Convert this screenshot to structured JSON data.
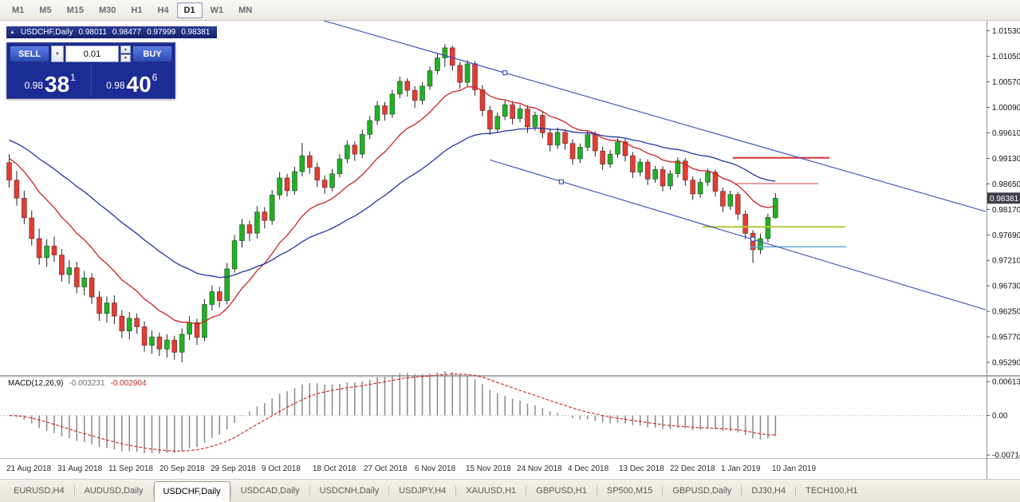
{
  "toolbar": {
    "timeframes": [
      "M1",
      "M5",
      "M15",
      "M30",
      "H1",
      "H4",
      "D1",
      "W1",
      "MN"
    ],
    "active": "D1"
  },
  "chart_header": {
    "icon": "▲",
    "title": "USDCHF,Daily",
    "open": "0.98011",
    "high": "0.98477",
    "low": "0.97999",
    "close": "0.98381"
  },
  "trade_panel": {
    "sell_label": "SELL",
    "buy_label": "BUY",
    "volume": "0.01",
    "sell_price": {
      "prefix": "0.98",
      "big": "38",
      "sup": "1"
    },
    "buy_price": {
      "prefix": "0.98",
      "big": "40",
      "sup": "6"
    }
  },
  "macd_header": {
    "label": "MACD(12,26,9)",
    "value1": "-0.003231",
    "value2": "-0.002904"
  },
  "tabs": {
    "items": [
      "EURUSD,H4",
      "AUDUSD,Daily",
      "USDCHF,Daily",
      "USDCAD,Daily",
      "USDCNH,Daily",
      "USDJPY,H4",
      "XAUUSD,H1",
      "GBPUSD,H1",
      "SP500,M15",
      "GBPUSD,Daily",
      "DJ30,H4",
      "TECH100,H1"
    ],
    "active": "USDCHF,Daily"
  },
  "chart_data": {
    "type": "candlestick",
    "symbol": "USDCHF",
    "timeframe": "Daily",
    "price_axis_ticks": [
      "1.01530",
      "1.01050",
      "1.00570",
      "1.00090",
      "0.99610",
      "0.99130",
      "0.98650",
      "0.98170",
      "0.97690",
      "0.97210",
      "0.96730",
      "0.96250",
      "0.95770",
      "0.95290"
    ],
    "current_price": "0.98381",
    "current_price_color": "#3f3f49",
    "price_range": {
      "top": 1.0172,
      "bottom": 0.9505
    },
    "x_labels": [
      "21 Aug 2018",
      "31 Aug 2018",
      "11 Sep 2018",
      "20 Sep 2018",
      "29 Sep 2018",
      "9 Oct 2018",
      "18 Oct 2018",
      "27 Oct 2018",
      "6 Nov 2018",
      "15 Nov 2018",
      "24 Nov 2018",
      "4 Dec 2018",
      "13 Dec 2018",
      "22 Dec 2018",
      "1 Jan 2019",
      "10 Jan 2019"
    ],
    "up_color": "#21b126",
    "down_color": "#e63c34",
    "candles": [
      [
        0.9905,
        0.9921,
        0.9858,
        0.9872
      ],
      [
        0.9872,
        0.9889,
        0.9824,
        0.9838
      ],
      [
        0.9838,
        0.9852,
        0.9789,
        0.9801
      ],
      [
        0.9801,
        0.9815,
        0.9749,
        0.9762
      ],
      [
        0.9762,
        0.9781,
        0.9713,
        0.9726
      ],
      [
        0.9726,
        0.9761,
        0.9709,
        0.9748
      ],
      [
        0.9748,
        0.9766,
        0.9718,
        0.9731
      ],
      [
        0.9731,
        0.9742,
        0.9681,
        0.9694
      ],
      [
        0.9694,
        0.9721,
        0.9677,
        0.9707
      ],
      [
        0.9707,
        0.9718,
        0.9659,
        0.9671
      ],
      [
        0.9671,
        0.9701,
        0.9655,
        0.9688
      ],
      [
        0.9688,
        0.9697,
        0.9639,
        0.9652
      ],
      [
        0.9652,
        0.9663,
        0.9607,
        0.9621
      ],
      [
        0.9621,
        0.9653,
        0.9604,
        0.9641
      ],
      [
        0.9641,
        0.9655,
        0.9601,
        0.9616
      ],
      [
        0.9616,
        0.9627,
        0.9575,
        0.9588
      ],
      [
        0.9588,
        0.9624,
        0.9572,
        0.9612
      ],
      [
        0.9612,
        0.9621,
        0.9583,
        0.9596
      ],
      [
        0.9596,
        0.9606,
        0.9549,
        0.9561
      ],
      [
        0.9561,
        0.9589,
        0.9545,
        0.9577
      ],
      [
        0.9577,
        0.9585,
        0.9541,
        0.9554
      ],
      [
        0.9554,
        0.9582,
        0.9538,
        0.9571
      ],
      [
        0.9571,
        0.9579,
        0.9534,
        0.9548
      ],
      [
        0.9548,
        0.9593,
        0.9529,
        0.9582
      ],
      [
        0.9582,
        0.9616,
        0.9571,
        0.9604
      ],
      [
        0.9604,
        0.9611,
        0.9562,
        0.9576
      ],
      [
        0.9576,
        0.9648,
        0.9569,
        0.9638
      ],
      [
        0.9638,
        0.9674,
        0.9627,
        0.9662
      ],
      [
        0.9662,
        0.9671,
        0.9632,
        0.9645
      ],
      [
        0.9645,
        0.9716,
        0.9638,
        0.9705
      ],
      [
        0.9705,
        0.9769,
        0.9698,
        0.9758
      ],
      [
        0.9758,
        0.9799,
        0.9745,
        0.9788
      ],
      [
        0.9788,
        0.9796,
        0.9757,
        0.9772
      ],
      [
        0.9772,
        0.9823,
        0.9762,
        0.9812
      ],
      [
        0.9812,
        0.9821,
        0.9781,
        0.9796
      ],
      [
        0.9796,
        0.9853,
        0.9788,
        0.9844
      ],
      [
        0.9844,
        0.9887,
        0.9836,
        0.9876
      ],
      [
        0.9876,
        0.9884,
        0.9841,
        0.9852
      ],
      [
        0.9852,
        0.9897,
        0.9845,
        0.9888
      ],
      [
        0.9888,
        0.9942,
        0.9879,
        0.9918
      ],
      [
        0.9918,
        0.9926,
        0.9884,
        0.9896
      ],
      [
        0.9896,
        0.9905,
        0.9859,
        0.9872
      ],
      [
        0.9872,
        0.9881,
        0.9846,
        0.9858
      ],
      [
        0.9858,
        0.9893,
        0.9851,
        0.9884
      ],
      [
        0.9884,
        0.9921,
        0.9877,
        0.9912
      ],
      [
        0.9912,
        0.9947,
        0.9904,
        0.9938
      ],
      [
        0.9938,
        0.9945,
        0.9908,
        0.9921
      ],
      [
        0.9921,
        0.9967,
        0.9914,
        0.9958
      ],
      [
        0.9958,
        0.9993,
        0.9949,
        0.9984
      ],
      [
        0.9984,
        1.0021,
        0.9976,
        1.0012
      ],
      [
        1.0012,
        1.0019,
        0.9984,
        0.9996
      ],
      [
        0.9996,
        1.0042,
        0.9989,
        1.0034
      ],
      [
        1.0034,
        1.0067,
        1.0026,
        1.0058
      ],
      [
        1.0058,
        1.0064,
        1.0029,
        1.0041
      ],
      [
        1.0041,
        1.0049,
        1.0008,
        1.0022
      ],
      [
        1.0022,
        1.0057,
        1.0014,
        1.0049
      ],
      [
        1.0049,
        1.0086,
        1.0042,
        1.0078
      ],
      [
        1.0078,
        1.0111,
        1.0071,
        1.0102
      ],
      [
        1.0102,
        1.0128,
        1.0085,
        1.0121
      ],
      [
        1.0121,
        1.0125,
        1.0078,
        1.0088
      ],
      [
        1.0088,
        1.0095,
        1.0044,
        1.0056
      ],
      [
        1.0056,
        1.0098,
        1.0049,
        1.0091
      ],
      [
        1.0091,
        1.0096,
        1.0031,
        1.0042
      ],
      [
        1.0042,
        1.0051,
        0.9992,
        1.0003
      ],
      [
        1.0003,
        1.0012,
        0.9957,
        0.9968
      ],
      [
        0.9968,
        0.9999,
        0.9961,
        0.9992
      ],
      [
        0.9992,
        1.0022,
        0.9985,
        1.0014
      ],
      [
        1.0014,
        1.0021,
        0.9977,
        0.9988
      ],
      [
        0.9988,
        1.0014,
        0.9981,
        1.0006
      ],
      [
        1.0006,
        1.0013,
        0.9961,
        0.9972
      ],
      [
        0.9972,
        1.0001,
        0.9965,
        0.9994
      ],
      [
        0.9994,
        1.0002,
        0.9951,
        0.9961
      ],
      [
        0.9961,
        0.9969,
        0.9926,
        0.9938
      ],
      [
        0.9938,
        0.9971,
        0.9931,
        0.9962
      ],
      [
        0.9962,
        0.9968,
        0.9929,
        0.9941
      ],
      [
        0.9941,
        0.9949,
        0.9901,
        0.9912
      ],
      [
        0.9912,
        0.9941,
        0.9904,
        0.9934
      ],
      [
        0.9934,
        0.9966,
        0.9927,
        0.9958
      ],
      [
        0.9958,
        0.9964,
        0.9916,
        0.9927
      ],
      [
        0.9927,
        0.9935,
        0.9891,
        0.9902
      ],
      [
        0.9902,
        0.9929,
        0.9895,
        0.9921
      ],
      [
        0.9921,
        0.9951,
        0.9914,
        0.9944
      ],
      [
        0.9944,
        0.995,
        0.9907,
        0.9918
      ],
      [
        0.9918,
        0.9925,
        0.9876,
        0.9887
      ],
      [
        0.9887,
        0.9913,
        0.9879,
        0.9906
      ],
      [
        0.9906,
        0.9911,
        0.9863,
        0.9874
      ],
      [
        0.9874,
        0.9899,
        0.9867,
        0.9892
      ],
      [
        0.9892,
        0.9898,
        0.9851,
        0.9861
      ],
      [
        0.9861,
        0.9891,
        0.9854,
        0.9884
      ],
      [
        0.9884,
        0.9915,
        0.9877,
        0.9908
      ],
      [
        0.9908,
        0.9913,
        0.9861,
        0.9872
      ],
      [
        0.9872,
        0.9879,
        0.9835,
        0.9846
      ],
      [
        0.9846,
        0.9875,
        0.9839,
        0.9868
      ],
      [
        0.9868,
        0.9894,
        0.9861,
        0.9887
      ],
      [
        0.9887,
        0.9892,
        0.9841,
        0.9851
      ],
      [
        0.9851,
        0.9858,
        0.9812,
        0.9823
      ],
      [
        0.9823,
        0.9852,
        0.9816,
        0.9845
      ],
      [
        0.9845,
        0.985,
        0.9797,
        0.9808
      ],
      [
        0.9808,
        0.9815,
        0.9761,
        0.9772
      ],
      [
        0.9772,
        0.9778,
        0.9716,
        0.9741
      ],
      [
        0.9741,
        0.9771,
        0.9733,
        0.9762
      ],
      [
        0.9762,
        0.9809,
        0.9755,
        0.9802
      ],
      [
        0.98011,
        0.98477,
        0.97999,
        0.98381
      ]
    ],
    "overlays": {
      "ma_fast": {
        "type": "ema",
        "period": 13,
        "seed": 0.992,
        "color": "#cf2020"
      },
      "ma_slow": {
        "type": "ema",
        "period": 34,
        "seed": 0.9952,
        "color": "#2433a8"
      },
      "trendlines": [
        {
          "i1": 38,
          "p1": 1.0188,
          "i2": 130,
          "p2": 0.9813,
          "color": "#3a49c0"
        },
        {
          "i1": 64,
          "p1": 0.991,
          "i2": 130,
          "p2": 0.9628,
          "color": "#3a49c0"
        }
      ],
      "hlines": [
        {
          "price": 0.9914,
          "i1": 96.3,
          "i2": 109.2,
          "color": "#e03030",
          "width": 2
        },
        {
          "price": 0.98656,
          "i1": 96.8,
          "i2": 107.7,
          "color": "#c24040",
          "width": 1
        },
        {
          "price": 0.97841,
          "i1": 92.3,
          "i2": 111.3,
          "color": "#b5c832",
          "width": 2
        },
        {
          "price": 0.97464,
          "i1": 98.7,
          "i2": 111.4,
          "color": "#5aa7d8",
          "width": 1.5
        }
      ],
      "anchors": [
        {
          "i": 66,
          "p": 1.0074
        },
        {
          "i": 73.5,
          "p": 0.9869
        },
        {
          "i": 99,
          "p": 0.9761
        }
      ]
    },
    "macd": {
      "fast": 12,
      "slow": 26,
      "signal": 9,
      "range": {
        "top": 0.007,
        "bottom": -0.0077
      },
      "axis_ticks": [
        "0.00613",
        "0.00",
        "-0.00714"
      ],
      "bar_color": "#8f8f8f",
      "signal_color": "#d02020"
    }
  }
}
